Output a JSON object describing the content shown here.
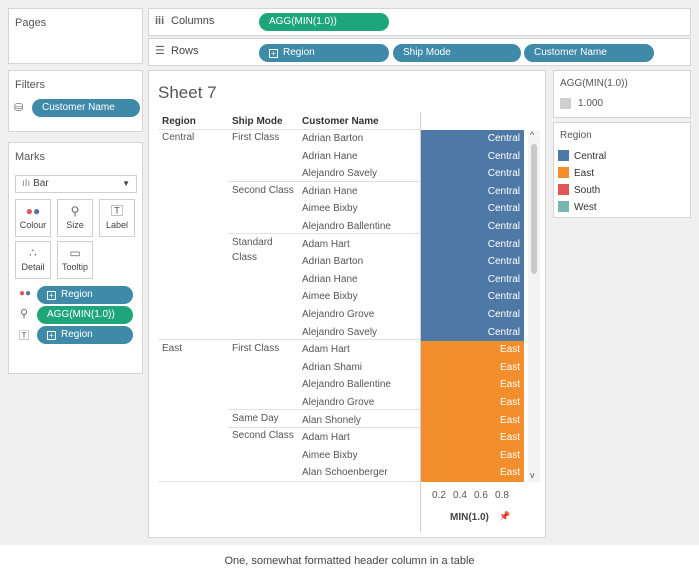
{
  "pages": {
    "title": "Pages"
  },
  "shelves": {
    "columns_label": "Columns",
    "columns_pill": "AGG(MIN(1.0))",
    "rows_label": "Rows",
    "rows_pills": [
      "Region",
      "Ship Mode",
      "Customer Name"
    ]
  },
  "filters": {
    "title": "Filters",
    "pill": "Customer Name"
  },
  "marks": {
    "title": "Marks",
    "type": "Bar",
    "buttons": [
      "Colour",
      "Size",
      "Label",
      "Detail",
      "Tooltip"
    ],
    "cards": [
      "Region",
      "AGG(MIN(1.0))",
      "Region"
    ]
  },
  "sheet": {
    "title": "Sheet 7",
    "headers": [
      "Region",
      "Ship Mode",
      "Customer Name"
    ],
    "regions": [
      "Central",
      "East"
    ],
    "ship_modes": [
      "First Class",
      "Second Class",
      "Standard",
      "Class",
      "First Class",
      "Same Day",
      "Second Class"
    ],
    "rows": [
      {
        "customer": "Adrian Barton",
        "bar": "Central"
      },
      {
        "customer": "Adrian Hane",
        "bar": "Central"
      },
      {
        "customer": "Alejandro Savely",
        "bar": "Central"
      },
      {
        "customer": "Adrian Hane",
        "bar": "Central"
      },
      {
        "customer": "Aimee Bixby",
        "bar": "Central"
      },
      {
        "customer": "Alejandro Ballentine",
        "bar": "Central"
      },
      {
        "customer": "Adam Hart",
        "bar": "Central"
      },
      {
        "customer": "Adrian Barton",
        "bar": "Central"
      },
      {
        "customer": "Adrian Hane",
        "bar": "Central"
      },
      {
        "customer": "Aimee Bixby",
        "bar": "Central"
      },
      {
        "customer": "Alejandro Grove",
        "bar": "Central"
      },
      {
        "customer": "Alejandro Savely",
        "bar": "Central"
      },
      {
        "customer": "Adam Hart",
        "bar": "East"
      },
      {
        "customer": "Adrian Shami",
        "bar": "East"
      },
      {
        "customer": "Alejandro Ballentine",
        "bar": "East"
      },
      {
        "customer": "Alejandro Grove",
        "bar": "East"
      },
      {
        "customer": "Alan Shonely",
        "bar": "East"
      },
      {
        "customer": "Adam Hart",
        "bar": "East"
      },
      {
        "customer": "Aimee Bixby",
        "bar": "East"
      },
      {
        "customer": "Alan Schoenberger",
        "bar": "East"
      }
    ],
    "axis_ticks": [
      "0.2",
      "0.4",
      "0.6",
      "0.8"
    ],
    "axis_label": "MIN(1.0)",
    "axis_pin": "📌",
    "scroll_up": "^",
    "scroll_down": "v"
  },
  "size_legend": {
    "title": "AGG(MIN(1.0))",
    "value": "1.000"
  },
  "color_legend": {
    "title": "Region",
    "items": [
      {
        "label": "Central",
        "color": "#4e79a7"
      },
      {
        "label": "East",
        "color": "#f28e2b"
      },
      {
        "label": "South",
        "color": "#e15759"
      },
      {
        "label": "West",
        "color": "#76b7b2"
      }
    ]
  },
  "caption": "One, somewhat formatted header column in a table",
  "colors": {
    "central": "#4e79a7",
    "east": "#f28e2b",
    "pill_blue": "#3f8aa8",
    "pill_green": "#1ea67a"
  }
}
